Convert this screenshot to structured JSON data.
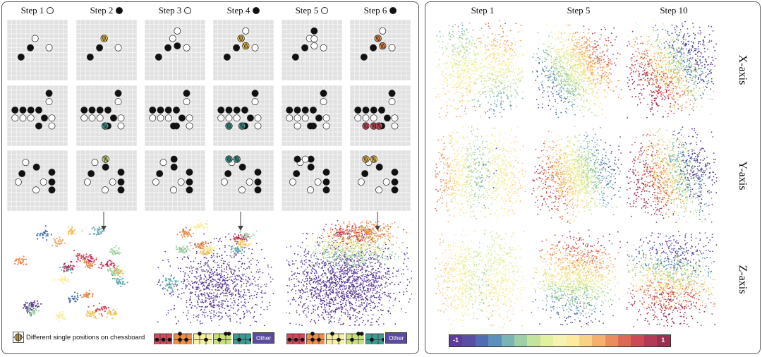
{
  "left": {
    "steps": [
      {
        "label": "Step 1",
        "stone": "white"
      },
      {
        "label": "Step 2",
        "stone": "black"
      },
      {
        "label": "Step 3",
        "stone": "white"
      },
      {
        "label": "Step 4",
        "stone": "black"
      },
      {
        "label": "Step 5",
        "stone": "white"
      },
      {
        "label": "Step 6",
        "stone": "black"
      }
    ],
    "legend": {
      "single_position_label": "Different single positions on chessboard",
      "other_label": "Other"
    }
  },
  "right": {
    "steps": [
      "Step 1",
      "Step 5",
      "Step 10"
    ],
    "axes": [
      "X-axis",
      "Y-axis",
      "Z-axis"
    ],
    "colorbar": {
      "min_label": "-1",
      "max_label": "1"
    }
  },
  "colors": {
    "board_bg": "#e2e2e2",
    "grid_line": "#f7f7f7",
    "highlight_yellow": "#f6c34a",
    "highlight_orange": "#ef8d45",
    "highlight_teal": "#3c9a92",
    "highlight_red": "#d4495c",
    "highlight_lime": "#c9e07a",
    "other_purple": "#5b4aa0"
  }
}
